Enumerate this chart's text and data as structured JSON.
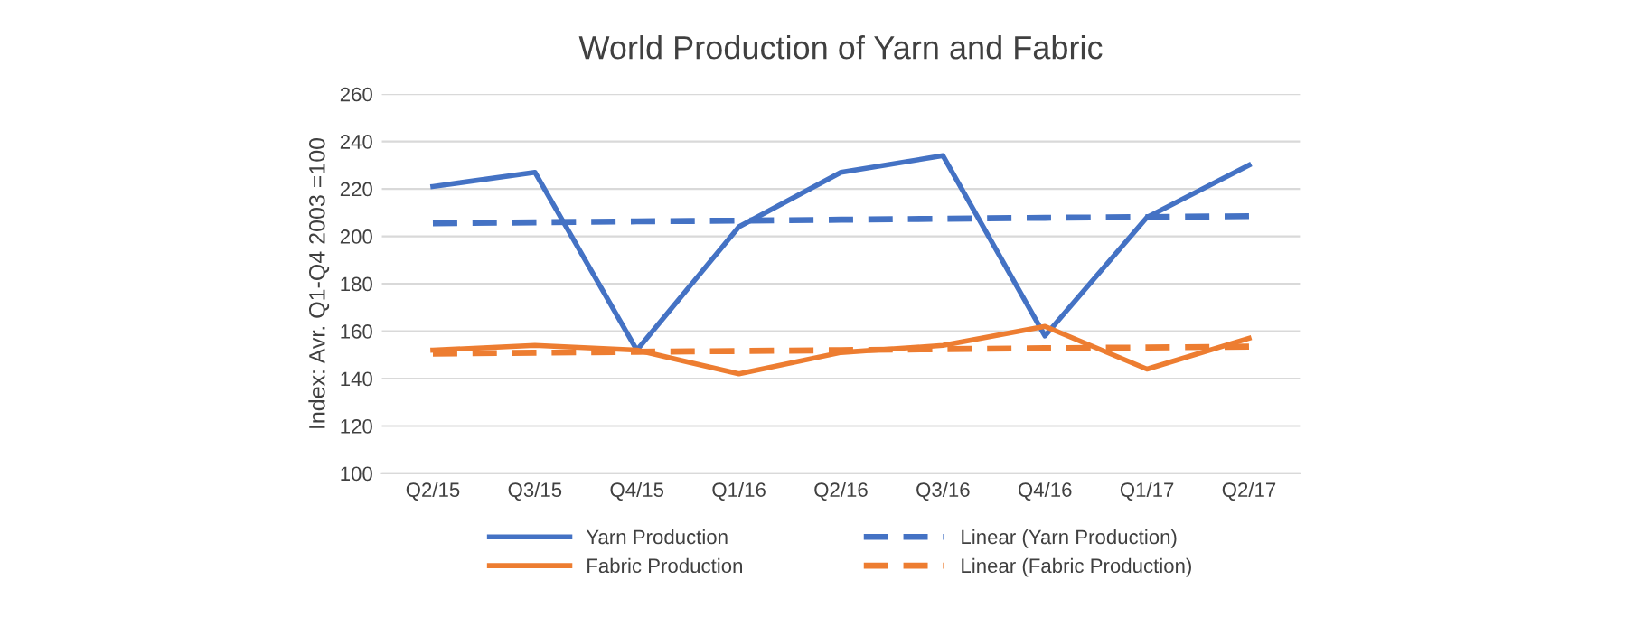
{
  "chart_data": {
    "type": "line",
    "title": "World Production of Yarn and Fabric",
    "ylabel": "Index: Avr. Q1-Q4 2003 =100",
    "categories": [
      "Q2/15",
      "Q3/15",
      "Q4/15",
      "Q1/16",
      "Q2/16",
      "Q3/16",
      "Q4/16",
      "Q1/17",
      "Q2/17"
    ],
    "series": [
      {
        "name": "Yarn Production",
        "color": "#4472c4",
        "line_style": "solid",
        "values": [
          221,
          227,
          152,
          204,
          227,
          234,
          158,
          208,
          230
        ]
      },
      {
        "name": "Fabric Production",
        "color": "#ed7d31",
        "line_style": "solid",
        "values": [
          152,
          154,
          152,
          142,
          151,
          154,
          162,
          144,
          157
        ]
      },
      {
        "name": "Linear (Yarn Production)",
        "color": "#4472c4",
        "line_style": "dashed",
        "values": [
          205.5,
          205.9,
          206.3,
          206.6,
          207,
          207.4,
          207.8,
          208.1,
          208.5
        ]
      },
      {
        "name": "Linear (Fabric Production)",
        "color": "#ed7d31",
        "line_style": "dashed",
        "values": [
          150.5,
          150.9,
          151.3,
          151.6,
          152,
          152.4,
          152.8,
          153.1,
          153.5
        ]
      }
    ],
    "ylim": [
      100,
      260
    ],
    "yticks": [
      100,
      120,
      140,
      160,
      180,
      200,
      220,
      240,
      260
    ],
    "grid": "y",
    "legend": "bottom",
    "marker": "none"
  }
}
